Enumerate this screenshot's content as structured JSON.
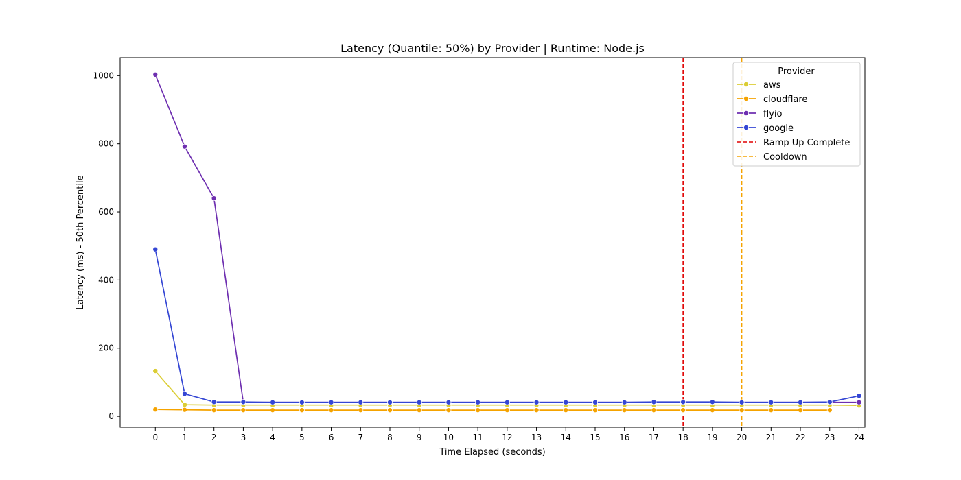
{
  "chart_data": {
    "type": "line",
    "title": "Latency (Quantile: 50%) by Provider | Runtime: Node.js",
    "xlabel": "Time Elapsed (seconds)",
    "ylabel": "Latency (ms) - 50th Percentile",
    "xlim": [
      -1.2,
      24.2
    ],
    "ylim": [
      -32,
      1053
    ],
    "x_ticks": [
      0,
      1,
      2,
      3,
      4,
      5,
      6,
      7,
      8,
      9,
      10,
      11,
      12,
      13,
      14,
      15,
      16,
      17,
      18,
      19,
      20,
      21,
      22,
      23,
      24
    ],
    "y_ticks": [
      0,
      200,
      400,
      600,
      800,
      1000
    ],
    "grid": false,
    "legend": {
      "title": "Provider",
      "placement": "top-right"
    },
    "series": [
      {
        "name": "aws",
        "color": "#dbcd34",
        "x": [
          0,
          1,
          2,
          3,
          4,
          5,
          6,
          7,
          8,
          9,
          10,
          11,
          12,
          13,
          14,
          15,
          16,
          17,
          18,
          19,
          20,
          21,
          22,
          23,
          24
        ],
        "y": [
          133,
          34,
          33,
          33,
          33,
          33,
          33,
          33,
          33,
          33,
          33,
          33,
          33,
          33,
          33,
          33,
          33,
          33,
          33,
          33,
          33,
          33,
          33,
          33,
          32
        ]
      },
      {
        "name": "cloudflare",
        "color": "#f5a300",
        "x": [
          0,
          1,
          2,
          3,
          4,
          5,
          6,
          7,
          8,
          9,
          10,
          11,
          12,
          13,
          14,
          15,
          16,
          17,
          18,
          19,
          20,
          21,
          22,
          23
        ],
        "y": [
          20,
          19,
          18,
          18,
          18,
          18,
          18,
          18,
          18,
          18,
          18,
          18,
          18,
          18,
          18,
          18,
          18,
          18,
          18,
          18,
          18,
          18,
          18,
          18
        ]
      },
      {
        "name": "flyio",
        "color": "#6e2fb0",
        "x": [
          0,
          1,
          2,
          3,
          4,
          5,
          6,
          7,
          8,
          9,
          10,
          11,
          12,
          13,
          14,
          15,
          16,
          17,
          18,
          19,
          20,
          21,
          22,
          23,
          24
        ],
        "y": [
          1003,
          792,
          640,
          41,
          41,
          41,
          41,
          41,
          41,
          41,
          41,
          41,
          41,
          41,
          41,
          41,
          41,
          41,
          41,
          41,
          41,
          41,
          41,
          41,
          41
        ]
      },
      {
        "name": "google",
        "color": "#3446d4",
        "x": [
          0,
          1,
          2,
          3,
          4,
          5,
          6,
          7,
          8,
          9,
          10,
          11,
          12,
          13,
          14,
          15,
          16,
          17,
          18,
          19,
          20,
          21,
          22,
          23,
          24
        ],
        "y": [
          490,
          66,
          42,
          42,
          41,
          41,
          41,
          41,
          41,
          41,
          41,
          41,
          41,
          41,
          41,
          41,
          41,
          42,
          42,
          42,
          41,
          41,
          41,
          42,
          60
        ]
      }
    ],
    "vlines": [
      {
        "name": "Ramp Up Complete",
        "x": 18,
        "color": "#e00000"
      },
      {
        "name": "Cooldown",
        "x": 20,
        "color": "#f5a300"
      }
    ]
  }
}
